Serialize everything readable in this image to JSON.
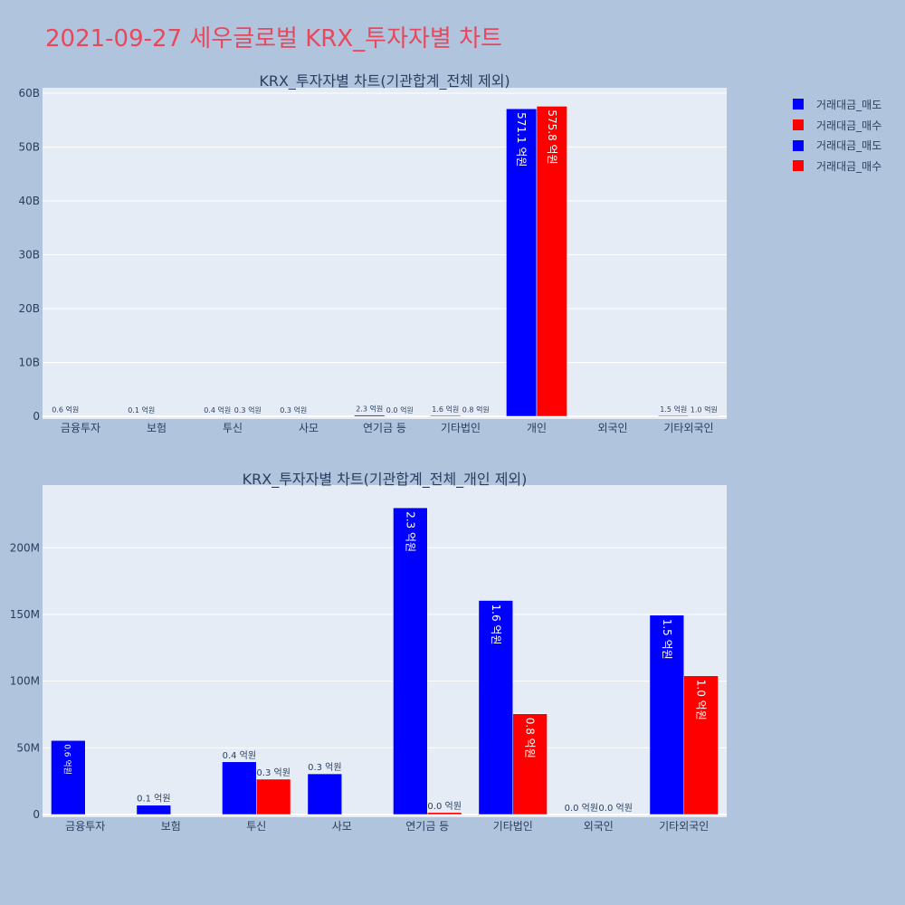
{
  "page": {
    "title": "2021-09-27 세우글로벌 KRX_투자자별 차트"
  },
  "legend": {
    "items": [
      {
        "label": "거래대금_매도",
        "color": "#0000ff"
      },
      {
        "label": "거래대금_매수",
        "color": "#ff0000"
      },
      {
        "label": "거래대금_매도",
        "color": "#0000ff"
      },
      {
        "label": "거래대금_매수",
        "color": "#ff0000"
      }
    ]
  },
  "colors": {
    "sell": "#0000ff",
    "buy": "#ff0000",
    "plot_bg": "#e5ecf6",
    "paper_bg": "#b0c4de",
    "title": "#e8475c"
  },
  "chart_data": [
    {
      "type": "bar",
      "title": "KRX_투자자별 차트(기관합계_전체 제외)",
      "categories": [
        "금융투자",
        "보험",
        "투신",
        "사모",
        "연기금 등",
        "기타법인",
        "개인",
        "외국인",
        "기타외국인"
      ],
      "series": [
        {
          "name": "거래대금_매도",
          "color": "#0000ff",
          "values": [
            60000000,
            10000000,
            40000000,
            30000000,
            230000000,
            160000000,
            57110000000,
            0,
            150000000
          ],
          "labels": [
            "0.6 억원",
            "0.1 억원",
            "0.4 억원",
            "0.3 억원",
            "2.3 억원",
            "1.6 억원",
            "571.1 억원",
            "",
            "1.5 억원"
          ]
        },
        {
          "name": "거래대금_매수",
          "color": "#ff0000",
          "values": [
            0,
            0,
            30000000,
            0,
            0,
            80000000,
            57580000000,
            0,
            100000000
          ],
          "labels": [
            "",
            "",
            "0.3 억원",
            "",
            "0.0 억원",
            "0.8 억원",
            "575.8 억원",
            "",
            "1.0 억원"
          ]
        }
      ],
      "ylim": [
        0,
        60500000000
      ],
      "yticks": [
        0,
        10000000000,
        20000000000,
        30000000000,
        40000000000,
        50000000000,
        60000000000
      ],
      "ytick_labels": [
        "0",
        "10B",
        "20B",
        "30B",
        "40B",
        "50B",
        "60B"
      ],
      "grid": true
    },
    {
      "type": "bar",
      "title": "KRX_투자자별 차트(기관합계_전체_개인 제외)",
      "categories": [
        "금융투자",
        "보험",
        "투신",
        "사모",
        "연기금 등",
        "기타법인",
        "외국인",
        "기타외국인"
      ],
      "series": [
        {
          "name": "거래대금_매도",
          "color": "#0000ff",
          "values": [
            55500000,
            7000000,
            39500000,
            30500000,
            230000000,
            160500000,
            0,
            149500000
          ],
          "labels": [
            "0.6 억원",
            "0.1 억원",
            "0.4 억원",
            "0.3 억원",
            "2.3 억원",
            "1.6 억원",
            "0.0 억원",
            "1.5 억원"
          ]
        },
        {
          "name": "거래대금_매수",
          "color": "#ff0000",
          "values": [
            0,
            0,
            26500000,
            0,
            1500000,
            75500000,
            0,
            104000000
          ],
          "labels": [
            "",
            "",
            "0.3 억원",
            "",
            "0.0 억원",
            "0.8 억원",
            "0.0 억원",
            "1.0 억원"
          ]
        }
      ],
      "ylim": [
        0,
        245000000
      ],
      "yticks": [
        0,
        50000000,
        100000000,
        150000000,
        200000000
      ],
      "ytick_labels": [
        "0",
        "50M",
        "100M",
        "150M",
        "200M"
      ],
      "grid": true
    }
  ]
}
